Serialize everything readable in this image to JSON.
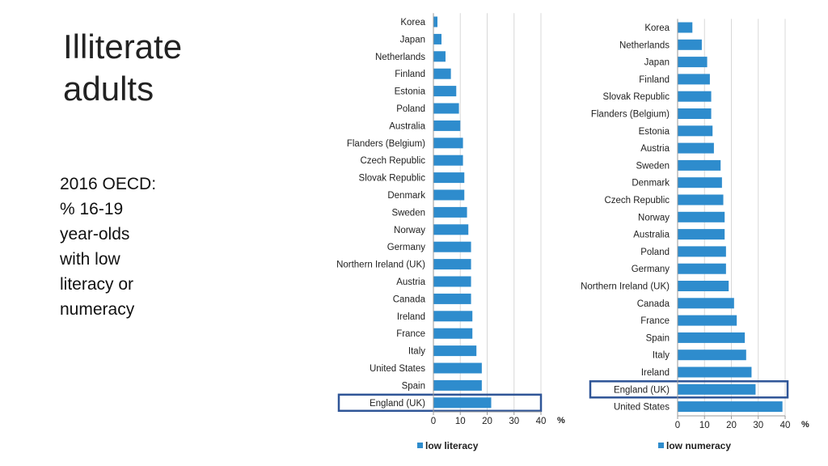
{
  "slide": {
    "title_lines": [
      "Illiterate",
      "adults"
    ],
    "subtitle_lines": [
      "2016 OECD:",
      "% 16-19",
      "year-olds",
      "with low",
      "literacy or",
      "numeracy"
    ]
  },
  "colors": {
    "bar": "#2e8ccd",
    "highlight_box": "#2f5597",
    "grid": "#d8d8d8",
    "axis": "#9a9a9a"
  },
  "chart_data": [
    {
      "type": "bar",
      "orientation": "horizontal",
      "categories": [
        "Korea",
        "Japan",
        "Netherlands",
        "Finland",
        "Estonia",
        "Poland",
        "Australia",
        "Flanders (Belgium)",
        "Czech Republic",
        "Slovak Republic",
        "Denmark",
        "Sweden",
        "Norway",
        "Germany",
        "Northern Ireland (UK)",
        "Austria",
        "Canada",
        "Ireland",
        "France",
        "Italy",
        "United States",
        "Spain",
        "England (UK)"
      ],
      "values": [
        1.5,
        3,
        4.5,
        6.5,
        8.5,
        9.5,
        10,
        11,
        11,
        11.5,
        11.5,
        12.5,
        13,
        14,
        14,
        14,
        14,
        14.5,
        14.5,
        16,
        18,
        18,
        21.5
      ],
      "xticks": [
        "0",
        "10",
        "20",
        "30",
        "40"
      ],
      "xlim": [
        0,
        40
      ],
      "unit_label": "%",
      "legend": "low literacy",
      "highlight": "England (UK)",
      "grid": true
    },
    {
      "type": "bar",
      "orientation": "horizontal",
      "categories": [
        "Korea",
        "Netherlands",
        "Japan",
        "Finland",
        "Slovak Republic",
        "Flanders (Belgium)",
        "Estonia",
        "Austria",
        "Sweden",
        "Denmark",
        "Czech Republic",
        "Norway",
        "Australia",
        "Poland",
        "Germany",
        "Northern Ireland (UK)",
        "Canada",
        "France",
        "Spain",
        "Italy",
        "Ireland",
        "England (UK)",
        "United States"
      ],
      "values": [
        5.5,
        9,
        11,
        12,
        12.5,
        12.5,
        13,
        13.5,
        16,
        16.5,
        17,
        17.5,
        17.5,
        18,
        18,
        19,
        21,
        22,
        25,
        25.5,
        27.5,
        29,
        39
      ],
      "xticks": [
        "0",
        "10",
        "20",
        "30",
        "40"
      ],
      "xlim": [
        0,
        40
      ],
      "unit_label": "%",
      "legend": "low numeracy",
      "highlight": "England (UK)",
      "grid": true
    }
  ]
}
